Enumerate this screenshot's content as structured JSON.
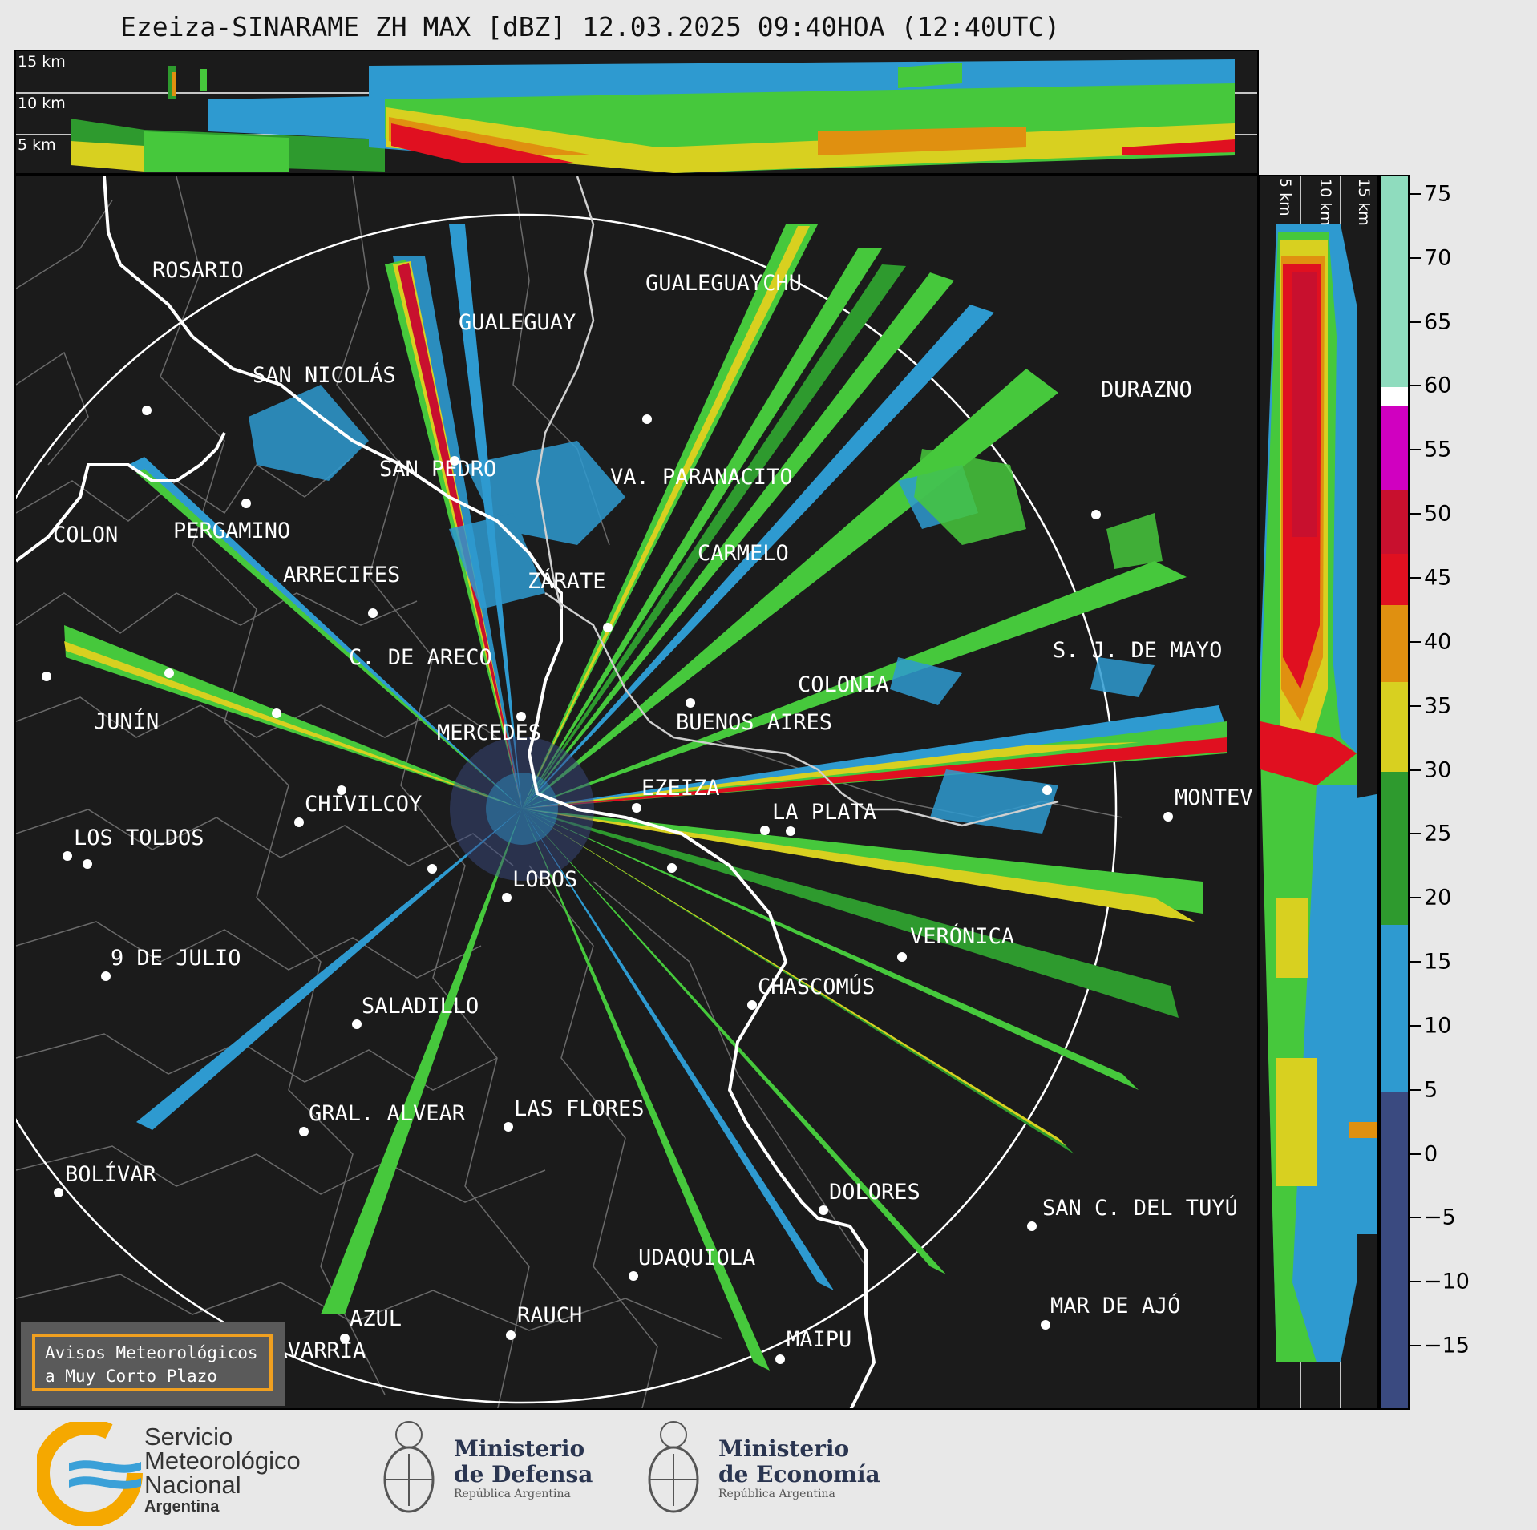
{
  "title": "Ezeiza-SINARAME ZH MAX [dBZ] 12.03.2025 09:40HOA (12:40UTC)",
  "altitude_labels": [
    "15 km",
    "10 km",
    "5 km"
  ],
  "side_altitude_labels": [
    "5 km",
    "10 km",
    "15 km"
  ],
  "colorbar": {
    "ticks": [
      75,
      70,
      65,
      60,
      55,
      50,
      45,
      40,
      35,
      30,
      25,
      20,
      15,
      10,
      5,
      0,
      -5,
      -10,
      -15
    ],
    "tick_labels": [
      "75",
      "70",
      "65",
      "60",
      "55",
      "50",
      "45",
      "40",
      "35",
      "30",
      "25",
      "20",
      "15",
      "10",
      "5",
      "0",
      "−5",
      "−10",
      "−15"
    ],
    "range": [
      -20,
      76.5
    ],
    "bands": [
      {
        "from": 60,
        "to": 76.5,
        "color": "#8fdcbe"
      },
      {
        "from": 58.5,
        "to": 60,
        "color": "#ffffff"
      },
      {
        "from": 52,
        "to": 58.5,
        "color": "#d000c0"
      },
      {
        "from": 47,
        "to": 52,
        "color": "#c8102e"
      },
      {
        "from": 43,
        "to": 47,
        "color": "#e01020"
      },
      {
        "from": 37,
        "to": 43,
        "color": "#e09010"
      },
      {
        "from": 30,
        "to": 37,
        "color": "#d8d020"
      },
      {
        "from": 18,
        "to": 30,
        "color": "#2e9a2e"
      },
      {
        "from": 5,
        "to": 18,
        "color": "#2e9ad0"
      },
      {
        "from": -20,
        "to": 5,
        "color": "#3a4a80"
      }
    ]
  },
  "cities": [
    {
      "id": "rosario",
      "name": "ROSARIO"
    },
    {
      "id": "gualeguaychu",
      "name": "GUALEGUAYCHU"
    },
    {
      "id": "gualeguay",
      "name": "GUALEGUAY"
    },
    {
      "id": "san-nicolas",
      "name": "SAN NICOLÁS"
    },
    {
      "id": "durazno",
      "name": "DURAZNO"
    },
    {
      "id": "san-pedro",
      "name": "SAN PEDRO"
    },
    {
      "id": "villa-paranacito",
      "name": "VA. PARANACITO"
    },
    {
      "id": "colon",
      "name": "COLON"
    },
    {
      "id": "pergamino",
      "name": "PERGAMINO"
    },
    {
      "id": "carmelo",
      "name": "CARMELO"
    },
    {
      "id": "arrecifes",
      "name": "ARRECIFES"
    },
    {
      "id": "zarate",
      "name": "ZÁRATE"
    },
    {
      "id": "sj-de-mayo",
      "name": "S. J. DE MAYO"
    },
    {
      "id": "c-de-areco",
      "name": "C. DE ARECO"
    },
    {
      "id": "colonia",
      "name": "COLONIA"
    },
    {
      "id": "junin",
      "name": "JUNÍN"
    },
    {
      "id": "buenos-aires",
      "name": "BUENOS AIRES"
    },
    {
      "id": "mercedes",
      "name": "MERCEDES"
    },
    {
      "id": "ezeiza",
      "name": "EZEIZA"
    },
    {
      "id": "montevideo",
      "name": "MONTEV"
    },
    {
      "id": "chivilcoy",
      "name": "CHIVILCOY"
    },
    {
      "id": "la-plata",
      "name": "LA PLATA"
    },
    {
      "id": "los-toldos",
      "name": "LOS TOLDOS"
    },
    {
      "id": "lobos",
      "name": "LOBOS"
    },
    {
      "id": "veronica",
      "name": "VERÓNICA"
    },
    {
      "id": "9-de-julio",
      "name": "9 DE JULIO"
    },
    {
      "id": "chascomus",
      "name": "CHASCOMÚS"
    },
    {
      "id": "saladillo",
      "name": "SALADILLO"
    },
    {
      "id": "gral-alvear",
      "name": "GRAL. ALVEAR"
    },
    {
      "id": "las-flores",
      "name": "LAS FLORES"
    },
    {
      "id": "bolivar",
      "name": "BOLÍVAR"
    },
    {
      "id": "dolores",
      "name": "DOLORES"
    },
    {
      "id": "san-c-del-tuyu",
      "name": "SAN C. DEL TUYÚ"
    },
    {
      "id": "udaquiola",
      "name": "UDAQUIOLA"
    },
    {
      "id": "mar-de-ajo",
      "name": "MAR DE AJÓ"
    },
    {
      "id": "azul",
      "name": "AZUL"
    },
    {
      "id": "rauch",
      "name": "RAUCH"
    },
    {
      "id": "maipu",
      "name": "MAIPU"
    },
    {
      "id": "olavarria",
      "name": "OLAVARRÍA"
    }
  ],
  "badge": {
    "line1": "Avisos Meteorológicos",
    "line2": "a Muy Corto Plazo"
  },
  "logos": {
    "smn": {
      "line1": "Servicio",
      "line2": "Meteorológico",
      "line3": "Nacional",
      "line4": "Argentina"
    },
    "defensa": {
      "line1": "Ministerio",
      "line2": "de Defensa",
      "line3": "República Argentina"
    },
    "economia": {
      "line1": "Ministerio",
      "line2": "de Economía",
      "line3": "República Argentina"
    }
  },
  "colors": {
    "background": "#e8e8e8",
    "panel": "#1b1b1b",
    "badge_border": "#f0a020",
    "smn_orange": "#f5a800",
    "smn_blue": "#3aa0d8",
    "ministry_text": "#2a3550"
  }
}
